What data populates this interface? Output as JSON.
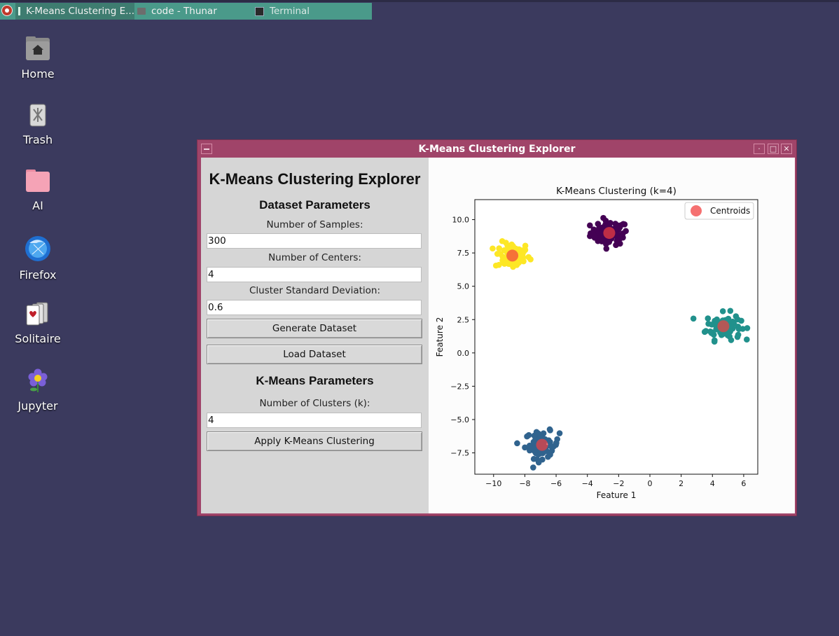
{
  "taskbar": {
    "tasks": [
      {
        "label": "K-Means Clustering E..."
      },
      {
        "label": "code - Thunar"
      },
      {
        "label": "Terminal"
      }
    ]
  },
  "desktop": {
    "icons": [
      {
        "label": "Home",
        "icon": "home-folder-icon"
      },
      {
        "label": "Trash",
        "icon": "trash-icon"
      },
      {
        "label": "AI",
        "icon": "folder-icon"
      },
      {
        "label": "Firefox",
        "icon": "firefox-icon"
      },
      {
        "label": "Solitaire",
        "icon": "cards-icon"
      },
      {
        "label": "Jupyter",
        "icon": "flower-icon"
      }
    ]
  },
  "window": {
    "title": "K-Means Clustering Explorer"
  },
  "panel": {
    "title": "K-Means Clustering Explorer",
    "dataset_header": "Dataset Parameters",
    "samples_label": "Number of Samples:",
    "samples_value": "300",
    "centers_label": "Number of Centers:",
    "centers_value": "4",
    "std_label": "Cluster Standard Deviation:",
    "std_value": "0.6",
    "generate_button": "Generate Dataset",
    "load_button": "Load Dataset",
    "kmeans_header": "K-Means Parameters",
    "k_label": "Number of Clusters (k):",
    "k_value": "4",
    "apply_button": "Apply K-Means Clustering"
  },
  "colors": {
    "window_frame": "#a04469",
    "desktop": "#3b3a5e",
    "taskbar_strip": "#4a9a8a"
  },
  "chart_data": {
    "type": "scatter",
    "title": "K-Means Clustering (k=4)",
    "xlabel": "Feature 1",
    "ylabel": "Feature 2",
    "xlim": [
      -11.2,
      6.9
    ],
    "ylim": [
      -9.1,
      11.5
    ],
    "xticks": [
      -10,
      -8,
      -6,
      -4,
      -2,
      0,
      2,
      4,
      6
    ],
    "yticks": [
      -7.5,
      -5.0,
      -2.5,
      0.0,
      2.5,
      5.0,
      7.5,
      10.0
    ],
    "legend": {
      "placement": "top-right",
      "entries": [
        "Centroids"
      ]
    },
    "series": [
      {
        "cluster": 0,
        "color": "#440154",
        "center": [
          -2.6,
          9.0
        ],
        "spread": [
          0.6,
          0.45
        ],
        "count": 75
      },
      {
        "cluster": 1,
        "color": "#fde725",
        "center": [
          -8.8,
          7.3
        ],
        "spread": [
          0.55,
          0.5
        ],
        "count": 75
      },
      {
        "cluster": 2,
        "color": "#21918c",
        "center": [
          4.7,
          2.0
        ],
        "spread": [
          0.55,
          0.5
        ],
        "count": 75
      },
      {
        "cluster": 3,
        "color": "#30638e",
        "center": [
          -6.9,
          -6.9
        ],
        "spread": [
          0.55,
          0.5
        ],
        "count": 75
      }
    ],
    "centroids": {
      "color": "#f24040",
      "points": [
        [
          -2.6,
          9.0
        ],
        [
          -8.8,
          7.3
        ],
        [
          4.7,
          2.0
        ],
        [
          -6.9,
          -6.9
        ]
      ]
    }
  }
}
